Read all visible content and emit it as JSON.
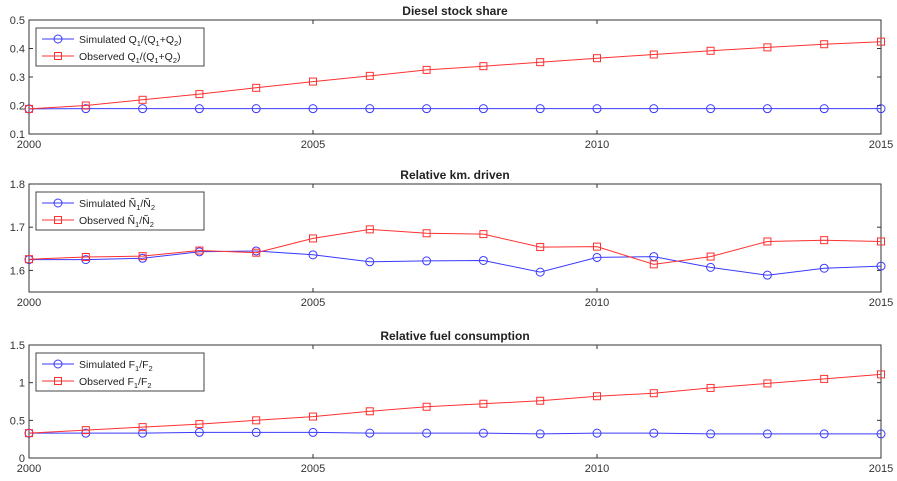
{
  "chart_data": [
    {
      "type": "line",
      "title": "Diesel stock share",
      "x": [
        2000,
        2001,
        2002,
        2003,
        2004,
        2005,
        2006,
        2007,
        2008,
        2009,
        2010,
        2011,
        2012,
        2013,
        2014,
        2015
      ],
      "xlim": [
        2000,
        2015
      ],
      "ylim": [
        0.1,
        0.5
      ],
      "xticks": [
        2000,
        2005,
        2010,
        2015
      ],
      "yticks": [
        0.1,
        0.2,
        0.3,
        0.4,
        0.5
      ],
      "ytick_labels": [
        "0.1",
        "0.2",
        "0.3",
        "0.4",
        "0.5"
      ],
      "legend_position": "top-left",
      "series": [
        {
          "name": "Simulated Q1/(Q1+Q2)",
          "legend": [
            {
              "t": "Simulated Q"
            },
            {
              "t": "1",
              "sub": true
            },
            {
              "t": "/(Q"
            },
            {
              "t": "1",
              "sub": true
            },
            {
              "t": "+Q"
            },
            {
              "t": "2",
              "sub": true
            },
            {
              "t": ")"
            }
          ],
          "color": "#3a3aff",
          "marker": "circle",
          "values": [
            0.188,
            0.189,
            0.189,
            0.189,
            0.189,
            0.189,
            0.189,
            0.189,
            0.189,
            0.189,
            0.189,
            0.189,
            0.189,
            0.189,
            0.189,
            0.189
          ]
        },
        {
          "name": "Observed Q1/(Q1+Q2)",
          "legend": [
            {
              "t": "Observed Q"
            },
            {
              "t": "1",
              "sub": true
            },
            {
              "t": "/(Q"
            },
            {
              "t": "1",
              "sub": true
            },
            {
              "t": "+Q"
            },
            {
              "t": "2",
              "sub": true
            },
            {
              "t": ")"
            }
          ],
          "color": "#ff3030",
          "marker": "square",
          "values": [
            0.188,
            0.2,
            0.22,
            0.24,
            0.262,
            0.284,
            0.304,
            0.325,
            0.338,
            0.352,
            0.366,
            0.379,
            0.392,
            0.404,
            0.415,
            0.424
          ]
        }
      ]
    },
    {
      "type": "line",
      "title": "Relative km. driven",
      "x": [
        2000,
        2001,
        2002,
        2003,
        2004,
        2005,
        2006,
        2007,
        2008,
        2009,
        2010,
        2011,
        2012,
        2013,
        2014,
        2015
      ],
      "xlim": [
        2000,
        2015
      ],
      "ylim": [
        1.55,
        1.8
      ],
      "xticks": [
        2000,
        2005,
        2010,
        2015
      ],
      "yticks": [
        1.6,
        1.7,
        1.8
      ],
      "ytick_labels": [
        "1.6",
        "1.7",
        "1.8"
      ],
      "legend_position": "top-left",
      "series": [
        {
          "name": "Simulated Ñ1/Ñ2",
          "legend": [
            {
              "t": "Simulated Ñ"
            },
            {
              "t": "1",
              "sub": true
            },
            {
              "t": "/Ñ"
            },
            {
              "t": "2",
              "sub": true
            }
          ],
          "color": "#3a3aff",
          "marker": "circle",
          "values": [
            1.625,
            1.625,
            1.628,
            1.643,
            1.645,
            1.636,
            1.62,
            1.622,
            1.623,
            1.596,
            1.63,
            1.632,
            1.607,
            1.589,
            1.605,
            1.61
          ]
        },
        {
          "name": "Observed Ñ1/Ñ2",
          "legend": [
            {
              "t": "Observed Ñ"
            },
            {
              "t": "1",
              "sub": true
            },
            {
              "t": "/Ñ"
            },
            {
              "t": "2",
              "sub": true
            }
          ],
          "color": "#ff3030",
          "marker": "square",
          "values": [
            1.626,
            1.631,
            1.633,
            1.646,
            1.641,
            1.674,
            1.695,
            1.686,
            1.684,
            1.654,
            1.655,
            1.614,
            1.632,
            1.667,
            1.67,
            1.667
          ]
        }
      ]
    },
    {
      "type": "line",
      "title": "Relative fuel consumption",
      "x": [
        2000,
        2001,
        2002,
        2003,
        2004,
        2005,
        2006,
        2007,
        2008,
        2009,
        2010,
        2011,
        2012,
        2013,
        2014,
        2015
      ],
      "xlim": [
        2000,
        2015
      ],
      "ylim": [
        0,
        1.5
      ],
      "xticks": [
        2000,
        2005,
        2010,
        2015
      ],
      "yticks": [
        0,
        0.5,
        1,
        1.5
      ],
      "ytick_labels": [
        "0",
        "0.5",
        "1",
        "1.5"
      ],
      "legend_position": "top-left",
      "series": [
        {
          "name": "Simulated F1/F2",
          "legend": [
            {
              "t": "Simulated F"
            },
            {
              "t": "1",
              "sub": true
            },
            {
              "t": "/F"
            },
            {
              "t": "2",
              "sub": true
            }
          ],
          "color": "#3a3aff",
          "marker": "circle",
          "values": [
            0.33,
            0.33,
            0.33,
            0.34,
            0.34,
            0.34,
            0.33,
            0.33,
            0.33,
            0.32,
            0.33,
            0.33,
            0.32,
            0.32,
            0.32,
            0.32
          ]
        },
        {
          "name": "Observed F1/F2",
          "legend": [
            {
              "t": "Observed F"
            },
            {
              "t": "1",
              "sub": true
            },
            {
              "t": "/F"
            },
            {
              "t": "2",
              "sub": true
            }
          ],
          "color": "#ff3030",
          "marker": "square",
          "values": [
            0.33,
            0.37,
            0.41,
            0.45,
            0.5,
            0.55,
            0.62,
            0.68,
            0.72,
            0.76,
            0.82,
            0.86,
            0.93,
            0.99,
            1.05,
            1.11
          ]
        }
      ]
    }
  ]
}
